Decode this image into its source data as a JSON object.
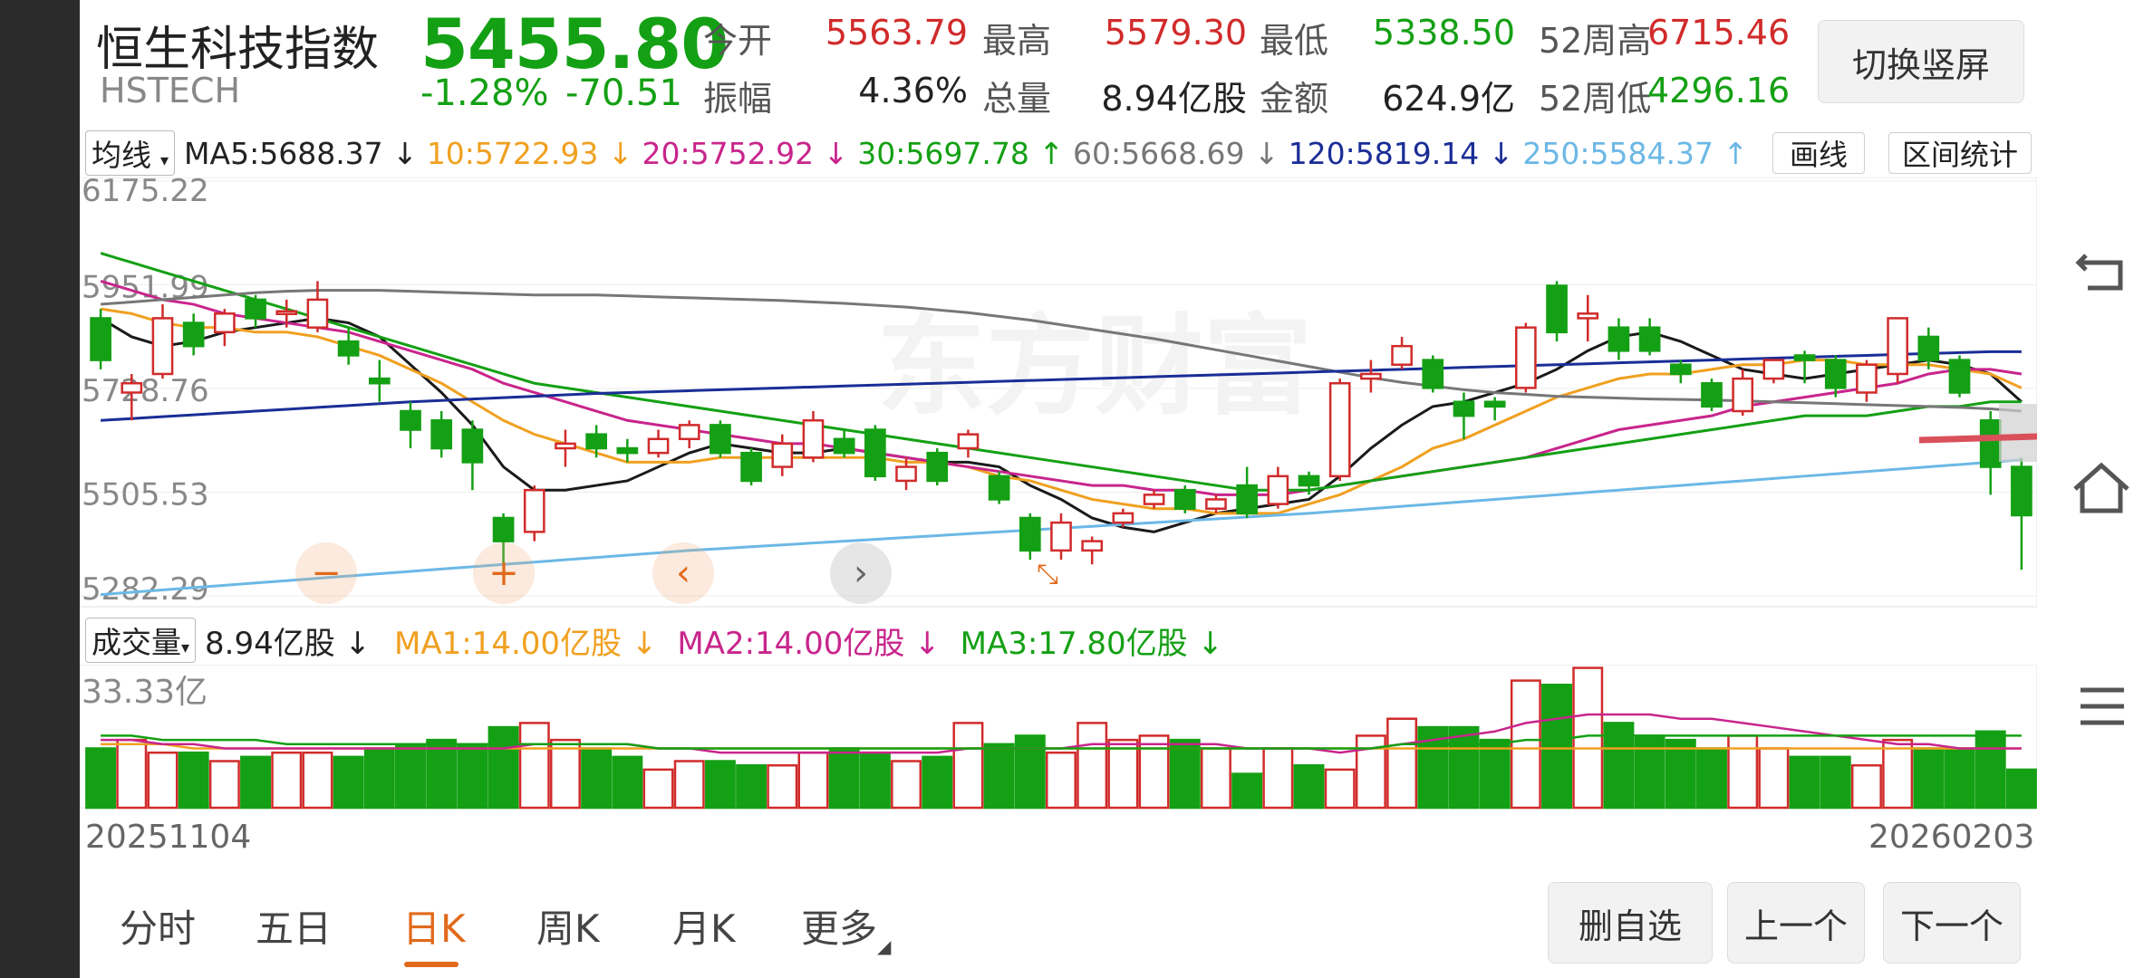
{
  "header": {
    "name": "恒生科技指数",
    "code": "HSTECH",
    "price": "5455.80",
    "change_pct": "-1.28%",
    "change_abs": "-70.51",
    "switch_button": "切换竖屏",
    "stats": {
      "open_label": "今开",
      "open": "5563.79",
      "high_label": "最高",
      "high": "5579.30",
      "low_label": "最低",
      "low": "5338.50",
      "w52_high_label": "52周高",
      "w52_high": "6715.46",
      "amp_label": "振幅",
      "amp": "4.36%",
      "vol_label": "总量",
      "vol": "8.94亿股",
      "amount_label": "金额",
      "amount": "624.9亿",
      "w52_low_label": "52周低",
      "w52_low": "4296.16"
    }
  },
  "ma_bar": {
    "selector": "均线",
    "ma5": "MA5:5688.37 ↓",
    "ma10": "10:5722.93 ↓",
    "ma20": "20:5752.92 ↓",
    "ma30": "30:5697.78 ↑",
    "ma60": "60:5668.69 ↓",
    "ma120": "120:5819.14 ↓",
    "ma250": "250:5584.37 ↑",
    "draw_button": "画线",
    "interval_button": "区间统计"
  },
  "chart_data": {
    "type": "candlestick",
    "y_ticks": [
      "6175.22",
      "5951.99",
      "5728.76",
      "5505.53",
      "5282.29"
    ],
    "ylim": [
      5282.29,
      6175.22
    ],
    "x_start": "20251104",
    "x_end": "20260203",
    "candles": [
      {
        "o": 5880,
        "c": 5790,
        "h": 5900,
        "l": 5770
      },
      {
        "o": 5720,
        "c": 5740,
        "h": 5760,
        "l": 5660
      },
      {
        "o": 5760,
        "c": 5880,
        "h": 5910,
        "l": 5750
      },
      {
        "o": 5870,
        "c": 5820,
        "h": 5890,
        "l": 5800
      },
      {
        "o": 5850,
        "c": 5890,
        "h": 5900,
        "l": 5820
      },
      {
        "o": 5920,
        "c": 5880,
        "h": 5930,
        "l": 5860
      },
      {
        "o": 5890,
        "c": 5895,
        "h": 5920,
        "l": 5860
      },
      {
        "o": 5860,
        "c": 5920,
        "h": 5960,
        "l": 5850
      },
      {
        "o": 5830,
        "c": 5800,
        "h": 5860,
        "l": 5780
      },
      {
        "o": 5750,
        "c": 5740,
        "h": 5790,
        "l": 5700
      },
      {
        "o": 5680,
        "c": 5640,
        "h": 5700,
        "l": 5600
      },
      {
        "o": 5660,
        "c": 5600,
        "h": 5680,
        "l": 5580
      },
      {
        "o": 5640,
        "c": 5570,
        "h": 5660,
        "l": 5510
      },
      {
        "o": 5450,
        "c": 5400,
        "h": 5460,
        "l": 5350
      },
      {
        "o": 5420,
        "c": 5510,
        "h": 5520,
        "l": 5400
      },
      {
        "o": 5600,
        "c": 5610,
        "h": 5640,
        "l": 5560
      },
      {
        "o": 5630,
        "c": 5600,
        "h": 5650,
        "l": 5580
      },
      {
        "o": 5600,
        "c": 5590,
        "h": 5620,
        "l": 5570
      },
      {
        "o": 5590,
        "c": 5620,
        "h": 5640,
        "l": 5580
      },
      {
        "o": 5620,
        "c": 5650,
        "h": 5660,
        "l": 5600
      },
      {
        "o": 5650,
        "c": 5590,
        "h": 5660,
        "l": 5580
      },
      {
        "o": 5590,
        "c": 5530,
        "h": 5600,
        "l": 5520
      },
      {
        "o": 5560,
        "c": 5610,
        "h": 5630,
        "l": 5540
      },
      {
        "o": 5580,
        "c": 5660,
        "h": 5680,
        "l": 5570
      },
      {
        "o": 5620,
        "c": 5590,
        "h": 5640,
        "l": 5580
      },
      {
        "o": 5640,
        "c": 5540,
        "h": 5650,
        "l": 5530
      },
      {
        "o": 5530,
        "c": 5560,
        "h": 5580,
        "l": 5510
      },
      {
        "o": 5590,
        "c": 5530,
        "h": 5600,
        "l": 5520
      },
      {
        "o": 5600,
        "c": 5630,
        "h": 5640,
        "l": 5580
      },
      {
        "o": 5540,
        "c": 5490,
        "h": 5550,
        "l": 5480
      },
      {
        "o": 5450,
        "c": 5380,
        "h": 5460,
        "l": 5360
      },
      {
        "o": 5380,
        "c": 5440,
        "h": 5460,
        "l": 5360
      },
      {
        "o": 5380,
        "c": 5400,
        "h": 5410,
        "l": 5350
      },
      {
        "o": 5440,
        "c": 5460,
        "h": 5470,
        "l": 5430
      },
      {
        "o": 5480,
        "c": 5500,
        "h": 5510,
        "l": 5470
      },
      {
        "o": 5510,
        "c": 5470,
        "h": 5520,
        "l": 5460
      },
      {
        "o": 5470,
        "c": 5490,
        "h": 5500,
        "l": 5460
      },
      {
        "o": 5520,
        "c": 5460,
        "h": 5560,
        "l": 5450
      },
      {
        "o": 5480,
        "c": 5540,
        "h": 5560,
        "l": 5470
      },
      {
        "o": 5540,
        "c": 5520,
        "h": 5550,
        "l": 5500
      },
      {
        "o": 5540,
        "c": 5740,
        "h": 5750,
        "l": 5530
      },
      {
        "o": 5750,
        "c": 5760,
        "h": 5790,
        "l": 5720
      },
      {
        "o": 5780,
        "c": 5820,
        "h": 5840,
        "l": 5770
      },
      {
        "o": 5790,
        "c": 5730,
        "h": 5800,
        "l": 5720
      },
      {
        "o": 5700,
        "c": 5670,
        "h": 5720,
        "l": 5620
      },
      {
        "o": 5700,
        "c": 5690,
        "h": 5710,
        "l": 5660
      },
      {
        "o": 5730,
        "c": 5860,
        "h": 5870,
        "l": 5720
      },
      {
        "o": 5950,
        "c": 5850,
        "h": 5960,
        "l": 5830
      },
      {
        "o": 5880,
        "c": 5890,
        "h": 5930,
        "l": 5830
      },
      {
        "o": 5860,
        "c": 5810,
        "h": 5880,
        "l": 5790
      },
      {
        "o": 5860,
        "c": 5810,
        "h": 5880,
        "l": 5800
      },
      {
        "o": 5780,
        "c": 5760,
        "h": 5790,
        "l": 5740
      },
      {
        "o": 5740,
        "c": 5690,
        "h": 5750,
        "l": 5680
      },
      {
        "o": 5680,
        "c": 5750,
        "h": 5770,
        "l": 5670
      },
      {
        "o": 5750,
        "c": 5790,
        "h": 5790,
        "l": 5740
      },
      {
        "o": 5800,
        "c": 5790,
        "h": 5810,
        "l": 5740
      },
      {
        "o": 5790,
        "c": 5730,
        "h": 5800,
        "l": 5710
      },
      {
        "o": 5720,
        "c": 5780,
        "h": 5790,
        "l": 5700
      },
      {
        "o": 5760,
        "c": 5880,
        "h": 5880,
        "l": 5740
      },
      {
        "o": 5840,
        "c": 5790,
        "h": 5860,
        "l": 5770
      },
      {
        "o": 5790,
        "c": 5720,
        "h": 5800,
        "l": 5710
      },
      {
        "o": 5660,
        "c": 5560,
        "h": 5680,
        "l": 5500
      },
      {
        "o": 5560,
        "c": 5455.8,
        "h": 5579.3,
        "l": 5338.5
      }
    ],
    "ma_lines": [
      {
        "name": "MA5",
        "color": "#1a1a1a",
        "values": [
          5880,
          5840,
          5820,
          5830,
          5850,
          5860,
          5870,
          5880,
          5870,
          5840,
          5780,
          5720,
          5650,
          5560,
          5510,
          5510,
          5520,
          5530,
          5560,
          5590,
          5610,
          5600,
          5590,
          5590,
          5600,
          5590,
          5580,
          5570,
          5570,
          5560,
          5520,
          5490,
          5450,
          5430,
          5420,
          5440,
          5460,
          5470,
          5480,
          5490,
          5540,
          5600,
          5650,
          5690,
          5700,
          5720,
          5740,
          5770,
          5810,
          5840,
          5850,
          5830,
          5800,
          5770,
          5760,
          5750,
          5760,
          5770,
          5780,
          5790,
          5780,
          5760,
          5700
        ]
      },
      {
        "name": "MA10",
        "color": "#f0a020",
        "values": [
          5900,
          5890,
          5870,
          5860,
          5860,
          5850,
          5850,
          5840,
          5820,
          5800,
          5770,
          5740,
          5700,
          5660,
          5630,
          5610,
          5590,
          5570,
          5570,
          5570,
          5580,
          5580,
          5580,
          5580,
          5580,
          5580,
          5570,
          5570,
          5560,
          5540,
          5530,
          5510,
          5490,
          5480,
          5470,
          5470,
          5460,
          5460,
          5460,
          5480,
          5500,
          5530,
          5560,
          5600,
          5620,
          5650,
          5680,
          5710,
          5730,
          5750,
          5760,
          5760,
          5770,
          5780,
          5780,
          5790,
          5790,
          5780,
          5780,
          5780,
          5770,
          5760,
          5730
        ]
      },
      {
        "name": "MA20",
        "color": "#c8258c",
        "values": [
          5960,
          5940,
          5920,
          5910,
          5890,
          5880,
          5870,
          5860,
          5850,
          5830,
          5810,
          5790,
          5770,
          5740,
          5720,
          5700,
          5680,
          5660,
          5650,
          5640,
          5630,
          5620,
          5610,
          5610,
          5600,
          5590,
          5580,
          5570,
          5560,
          5550,
          5540,
          5530,
          5520,
          5520,
          5510,
          5510,
          5500,
          5500,
          5500,
          5510,
          5520,
          5530,
          5540,
          5550,
          5560,
          5570,
          5580,
          5600,
          5620,
          5640,
          5650,
          5660,
          5670,
          5690,
          5700,
          5710,
          5720,
          5730,
          5740,
          5760,
          5770,
          5770,
          5760
        ]
      },
      {
        "name": "MA30",
        "color": "#14a014",
        "values": [
          6020,
          6000,
          5980,
          5960,
          5940,
          5920,
          5900,
          5880,
          5860,
          5840,
          5820,
          5800,
          5780,
          5760,
          5740,
          5730,
          5720,
          5710,
          5700,
          5690,
          5680,
          5670,
          5660,
          5650,
          5640,
          5630,
          5620,
          5610,
          5600,
          5590,
          5580,
          5570,
          5560,
          5550,
          5540,
          5530,
          5520,
          5510,
          5510,
          5510,
          5520,
          5530,
          5540,
          5550,
          5560,
          5570,
          5580,
          5590,
          5600,
          5610,
          5620,
          5630,
          5640,
          5650,
          5660,
          5670,
          5670,
          5670,
          5680,
          5690,
          5690,
          5700,
          5700
        ]
      },
      {
        "name": "MA60",
        "color": "#777777",
        "values": [
          5910,
          5915,
          5920,
          5925,
          5930,
          5935,
          5938,
          5940,
          5940,
          5940,
          5938,
          5936,
          5934,
          5932,
          5930,
          5930,
          5930,
          5928,
          5926,
          5924,
          5922,
          5920,
          5918,
          5915,
          5912,
          5908,
          5904,
          5898,
          5892,
          5884,
          5876,
          5866,
          5856,
          5846,
          5836,
          5824,
          5812,
          5800,
          5788,
          5776,
          5764,
          5752,
          5742,
          5734,
          5726,
          5720,
          5716,
          5712,
          5710,
          5708,
          5706,
          5705,
          5704,
          5702,
          5700,
          5698,
          5696,
          5694,
          5692,
          5690,
          5688,
          5685,
          5680
        ]
      },
      {
        "name": "MA120",
        "color": "#1a2d96",
        "values": [
          5660,
          5664,
          5668,
          5672,
          5676,
          5680,
          5684,
          5688,
          5692,
          5696,
          5700,
          5703,
          5706,
          5709,
          5712,
          5715,
          5718,
          5720,
          5722,
          5724,
          5726,
          5728,
          5730,
          5732,
          5734,
          5736,
          5738,
          5740,
          5742,
          5744,
          5746,
          5748,
          5750,
          5752,
          5754,
          5756,
          5758,
          5760,
          5762,
          5764,
          5766,
          5768,
          5770,
          5772,
          5774,
          5776,
          5778,
          5780,
          5782,
          5784,
          5786,
          5788,
          5790,
          5792,
          5794,
          5796,
          5798,
          5800,
          5802,
          5804,
          5806,
          5808,
          5808
        ]
      },
      {
        "name": "MA250",
        "color": "#6cb8e6",
        "values": [
          5285,
          5290,
          5295,
          5300,
          5305,
          5310,
          5315,
          5320,
          5325,
          5330,
          5335,
          5340,
          5345,
          5350,
          5355,
          5360,
          5365,
          5370,
          5375,
          5380,
          5384,
          5388,
          5392,
          5396,
          5400,
          5404,
          5408,
          5412,
          5416,
          5420,
          5424,
          5428,
          5432,
          5436,
          5440,
          5444,
          5448,
          5452,
          5456,
          5460,
          5465,
          5470,
          5475,
          5480,
          5485,
          5490,
          5495,
          5500,
          5505,
          5510,
          5515,
          5520,
          5525,
          5530,
          5535,
          5540,
          5545,
          5550,
          5555,
          5560,
          5565,
          5570,
          5575
        ]
      }
    ],
    "volume": {
      "label": "成交量",
      "current": "8.94亿股 ↓",
      "ma1": "MA1:14.00亿股 ↓",
      "ma2": "MA2:14.00亿股 ↓",
      "ma3": "MA3:17.80亿股 ↓",
      "max_label": "33.33亿",
      "ymax": 33.33,
      "values": [
        14,
        16,
        13,
        13,
        11,
        12,
        13,
        13,
        12,
        14,
        15,
        16,
        15,
        19,
        20,
        16,
        14,
        12,
        9,
        11,
        11,
        10,
        10,
        13,
        14,
        13,
        11,
        12,
        20,
        15,
        17,
        13,
        20,
        16,
        17,
        16,
        14,
        8,
        14,
        10,
        9,
        17,
        21,
        19,
        19,
        16,
        30,
        29,
        33,
        20,
        17,
        16,
        14,
        17,
        14,
        12,
        12,
        10,
        16,
        14,
        14,
        18,
        9
      ],
      "ma_lines": [
        {
          "name": "MA1",
          "color": "#f0a020",
          "values": [
            15,
            15,
            15,
            14,
            14,
            14,
            14,
            14,
            14,
            14,
            14,
            14,
            14,
            14,
            14,
            14,
            14,
            14,
            14,
            14,
            14,
            14,
            14,
            14,
            14,
            14,
            14,
            14,
            14,
            14,
            14,
            14,
            14,
            14,
            14,
            14,
            14,
            14,
            14,
            14,
            14,
            14,
            14,
            14,
            14,
            14,
            14,
            14,
            14,
            14,
            14,
            14,
            14,
            14,
            14,
            14,
            14,
            14,
            14,
            14,
            14,
            14,
            14
          ]
        },
        {
          "name": "MA2",
          "color": "#c8258c",
          "values": [
            16,
            16,
            15,
            15,
            14,
            14,
            14,
            14,
            14,
            14,
            14,
            14,
            14,
            14,
            15,
            15,
            15,
            15,
            14,
            14,
            13,
            13,
            13,
            13,
            13,
            13,
            13,
            13,
            14,
            14,
            14,
            14,
            15,
            15,
            15,
            15,
            15,
            14,
            14,
            14,
            13,
            14,
            15,
            16,
            17,
            18,
            20,
            21,
            22,
            22,
            22,
            21,
            21,
            20,
            19,
            18,
            17,
            16,
            15,
            15,
            14,
            14,
            14
          ]
        },
        {
          "name": "MA3",
          "color": "#14a014",
          "values": [
            17,
            17,
            16,
            16,
            16,
            16,
            15,
            15,
            15,
            15,
            15,
            15,
            15,
            15,
            15,
            15,
            15,
            15,
            14,
            14,
            14,
            14,
            14,
            14,
            14,
            14,
            14,
            14,
            14,
            14,
            14,
            14,
            14,
            14,
            14,
            14,
            14,
            14,
            14,
            14,
            14,
            14,
            15,
            15,
            15,
            15,
            16,
            16,
            17,
            17,
            17,
            17,
            17,
            17,
            17,
            17,
            17,
            17,
            17,
            17,
            17,
            17,
            17
          ]
        }
      ]
    },
    "overlay_controls": [
      "−",
      "+",
      "‹",
      "›"
    ]
  },
  "side_icons": [
    "return-icon",
    "home-icon",
    "menu-icon"
  ],
  "tabs": [
    "分时",
    "五日",
    "日K",
    "周K",
    "月K",
    "更多"
  ],
  "active_tab": "日K",
  "footer_buttons": {
    "delete": "删自选",
    "prev": "上一个",
    "next": "下一个"
  },
  "watermark": "东方财富",
  "colors": {
    "up": "#d12b2b",
    "down": "#14a014",
    "accent": "#e06a1b"
  }
}
